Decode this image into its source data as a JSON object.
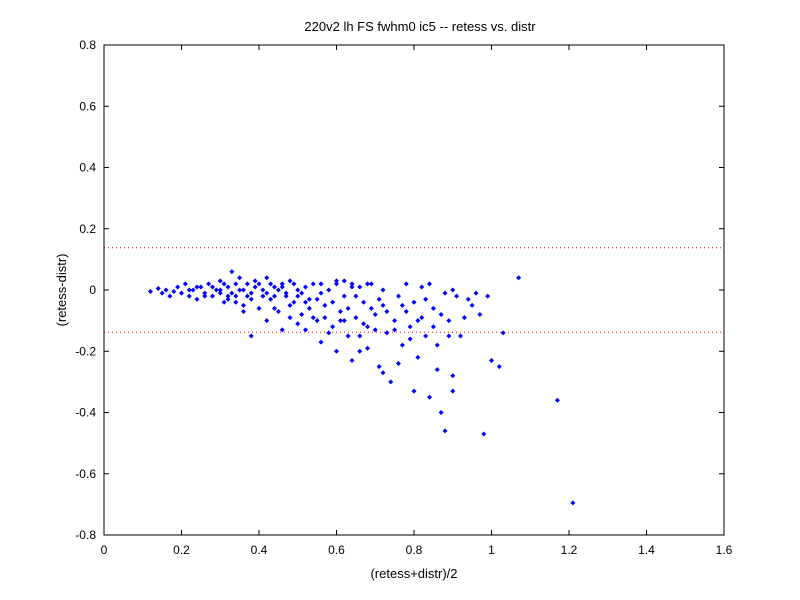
{
  "chart_data": {
    "type": "scatter",
    "title": "220v2 lh FS fwhm0 ic5 -- retess vs. distr",
    "xlabel": "(retess+distr)/2",
    "ylabel": "(retess-distr)",
    "xlim": [
      0,
      1.6
    ],
    "ylim": [
      -0.8,
      0.8
    ],
    "xticks": [
      "0",
      "0.2",
      "0.4",
      "0.6",
      "0.8",
      "1",
      "1.2",
      "1.4",
      "1.6"
    ],
    "yticks": [
      "0.8",
      "0.6",
      "0.4",
      "0.2",
      "0",
      "-0.2",
      "-0.4",
      "-0.6",
      "-0.8"
    ],
    "grid": false,
    "reference_lines": [
      {
        "y": 0.138,
        "style": "dotted",
        "color": "#ff0000"
      },
      {
        "y": -0.138,
        "style": "dotted",
        "color": "#ff0000"
      }
    ],
    "marker_color": "#0000ff",
    "points": [
      [
        0.12,
        -0.005
      ],
      [
        0.14,
        0.005
      ],
      [
        0.15,
        -0.01
      ],
      [
        0.16,
        0.0
      ],
      [
        0.17,
        -0.02
      ],
      [
        0.18,
        -0.005
      ],
      [
        0.19,
        0.01
      ],
      [
        0.2,
        -0.01
      ],
      [
        0.21,
        0.02
      ],
      [
        0.22,
        -0.02
      ],
      [
        0.23,
        0.0
      ],
      [
        0.24,
        -0.03
      ],
      [
        0.25,
        0.01
      ],
      [
        0.26,
        -0.01
      ],
      [
        0.27,
        0.02
      ],
      [
        0.28,
        -0.02
      ],
      [
        0.29,
        0.0
      ],
      [
        0.3,
        0.03
      ],
      [
        0.31,
        -0.04
      ],
      [
        0.32,
        0.01
      ],
      [
        0.33,
        0.06
      ],
      [
        0.34,
        -0.02
      ],
      [
        0.35,
        0.04
      ],
      [
        0.36,
        -0.05
      ],
      [
        0.37,
        0.02
      ],
      [
        0.38,
        -0.01
      ],
      [
        0.39,
        0.03
      ],
      [
        0.4,
        -0.06
      ],
      [
        0.41,
        0.0
      ],
      [
        0.42,
        0.04
      ],
      [
        0.43,
        -0.03
      ],
      [
        0.44,
        0.01
      ],
      [
        0.45,
        -0.07
      ],
      [
        0.46,
        0.02
      ],
      [
        0.47,
        -0.02
      ],
      [
        0.48,
        0.03
      ],
      [
        0.49,
        -0.04
      ],
      [
        0.5,
        0.0
      ],
      [
        0.51,
        -0.08
      ],
      [
        0.52,
        0.01
      ],
      [
        0.53,
        -0.03
      ],
      [
        0.54,
        0.02
      ],
      [
        0.55,
        -0.1
      ],
      [
        0.56,
        -0.01
      ],
      [
        0.57,
        -0.05
      ],
      [
        0.58,
        0.0
      ],
      [
        0.59,
        -0.12
      ],
      [
        0.6,
        0.03
      ],
      [
        0.61,
        -0.07
      ],
      [
        0.62,
        -0.02
      ],
      [
        0.63,
        -0.15
      ],
      [
        0.64,
        0.01
      ],
      [
        0.65,
        -0.09
      ],
      [
        0.66,
        -0.2
      ],
      [
        0.67,
        -0.04
      ],
      [
        0.68,
        -0.12
      ],
      [
        0.69,
        0.02
      ],
      [
        0.7,
        -0.08
      ],
      [
        0.71,
        -0.25
      ],
      [
        0.72,
        -0.05
      ],
      [
        0.73,
        -0.14
      ],
      [
        0.74,
        -0.3
      ],
      [
        0.75,
        -0.1
      ],
      [
        0.76,
        -0.02
      ],
      [
        0.77,
        -0.18
      ],
      [
        0.78,
        -0.07
      ],
      [
        0.79,
        -0.12
      ],
      [
        0.8,
        -0.04
      ],
      [
        0.81,
        -0.22
      ],
      [
        0.82,
        -0.09
      ],
      [
        0.83,
        -0.15
      ],
      [
        0.84,
        -0.35
      ],
      [
        0.85,
        -0.06
      ],
      [
        0.86,
        -0.18
      ],
      [
        0.87,
        -0.4
      ],
      [
        0.88,
        -0.46
      ],
      [
        0.89,
        -0.1
      ],
      [
        0.9,
        -0.28
      ],
      [
        0.91,
        -0.02
      ],
      [
        0.92,
        -0.15
      ],
      [
        0.95,
        -0.05
      ],
      [
        0.98,
        -0.47
      ],
      [
        1.0,
        -0.23
      ],
      [
        1.02,
        -0.25
      ],
      [
        1.03,
        -0.14
      ],
      [
        1.07,
        0.04
      ],
      [
        1.17,
        -0.36
      ],
      [
        1.21,
        -0.695
      ],
      [
        0.22,
        0.0
      ],
      [
        0.24,
        0.01
      ],
      [
        0.26,
        -0.02
      ],
      [
        0.28,
        0.01
      ],
      [
        0.3,
        -0.01
      ],
      [
        0.32,
        -0.02
      ],
      [
        0.34,
        0.02
      ],
      [
        0.36,
        0.0
      ],
      [
        0.38,
        -0.03
      ],
      [
        0.4,
        0.02
      ],
      [
        0.42,
        -0.01
      ],
      [
        0.44,
        -0.02
      ],
      [
        0.46,
        0.01
      ],
      [
        0.48,
        -0.05
      ],
      [
        0.5,
        -0.02
      ],
      [
        0.52,
        -0.04
      ],
      [
        0.3,
        0.0
      ],
      [
        0.31,
        0.02
      ],
      [
        0.33,
        -0.01
      ],
      [
        0.35,
        0.0
      ],
      [
        0.37,
        -0.02
      ],
      [
        0.39,
        0.01
      ],
      [
        0.41,
        -0.02
      ],
      [
        0.43,
        0.02
      ],
      [
        0.45,
        0.0
      ],
      [
        0.47,
        -0.01
      ],
      [
        0.49,
        0.02
      ],
      [
        0.51,
        -0.01
      ],
      [
        0.53,
        -0.06
      ],
      [
        0.55,
        -0.03
      ],
      [
        0.57,
        -0.09
      ],
      [
        0.59,
        -0.04
      ],
      [
        0.61,
        -0.1
      ],
      [
        0.63,
        -0.06
      ],
      [
        0.65,
        -0.02
      ],
      [
        0.67,
        -0.11
      ],
      [
        0.69,
        -0.06
      ],
      [
        0.71,
        -0.03
      ],
      [
        0.73,
        -0.07
      ],
      [
        0.75,
        -0.13
      ],
      [
        0.77,
        -0.05
      ],
      [
        0.79,
        -0.16
      ],
      [
        0.81,
        -0.1
      ],
      [
        0.83,
        -0.03
      ],
      [
        0.85,
        -0.12
      ],
      [
        0.87,
        -0.08
      ],
      [
        0.89,
        -0.15
      ],
      [
        0.93,
        -0.09
      ],
      [
        0.5,
        -0.11
      ],
      [
        0.52,
        -0.13
      ],
      [
        0.54,
        -0.09
      ],
      [
        0.56,
        -0.17
      ],
      [
        0.58,
        -0.14
      ],
      [
        0.6,
        -0.2
      ],
      [
        0.62,
        -0.1
      ],
      [
        0.64,
        -0.23
      ],
      [
        0.66,
        -0.15
      ],
      [
        0.68,
        -0.19
      ],
      [
        0.7,
        -0.13
      ],
      [
        0.72,
        -0.27
      ],
      [
        0.76,
        -0.24
      ],
      [
        0.8,
        -0.33
      ],
      [
        0.86,
        -0.26
      ],
      [
        0.9,
        -0.33
      ],
      [
        0.38,
        -0.15
      ],
      [
        0.42,
        -0.1
      ],
      [
        0.46,
        -0.13
      ],
      [
        0.48,
        -0.09
      ],
      [
        0.44,
        -0.06
      ],
      [
        0.36,
        -0.07
      ],
      [
        0.34,
        -0.04
      ],
      [
        0.32,
        -0.03
      ],
      [
        0.56,
        0.02
      ],
      [
        0.6,
        0.02
      ],
      [
        0.62,
        0.03
      ],
      [
        0.64,
        0.02
      ],
      [
        0.66,
        0.01
      ],
      [
        0.68,
        0.02
      ],
      [
        0.72,
        0.0
      ],
      [
        0.78,
        0.02
      ],
      [
        0.82,
        0.01
      ],
      [
        0.84,
        0.02
      ],
      [
        0.88,
        -0.01
      ],
      [
        0.9,
        0.0
      ],
      [
        0.94,
        -0.03
      ],
      [
        0.96,
        -0.01
      ],
      [
        0.97,
        -0.08
      ],
      [
        0.99,
        -0.02
      ]
    ]
  }
}
